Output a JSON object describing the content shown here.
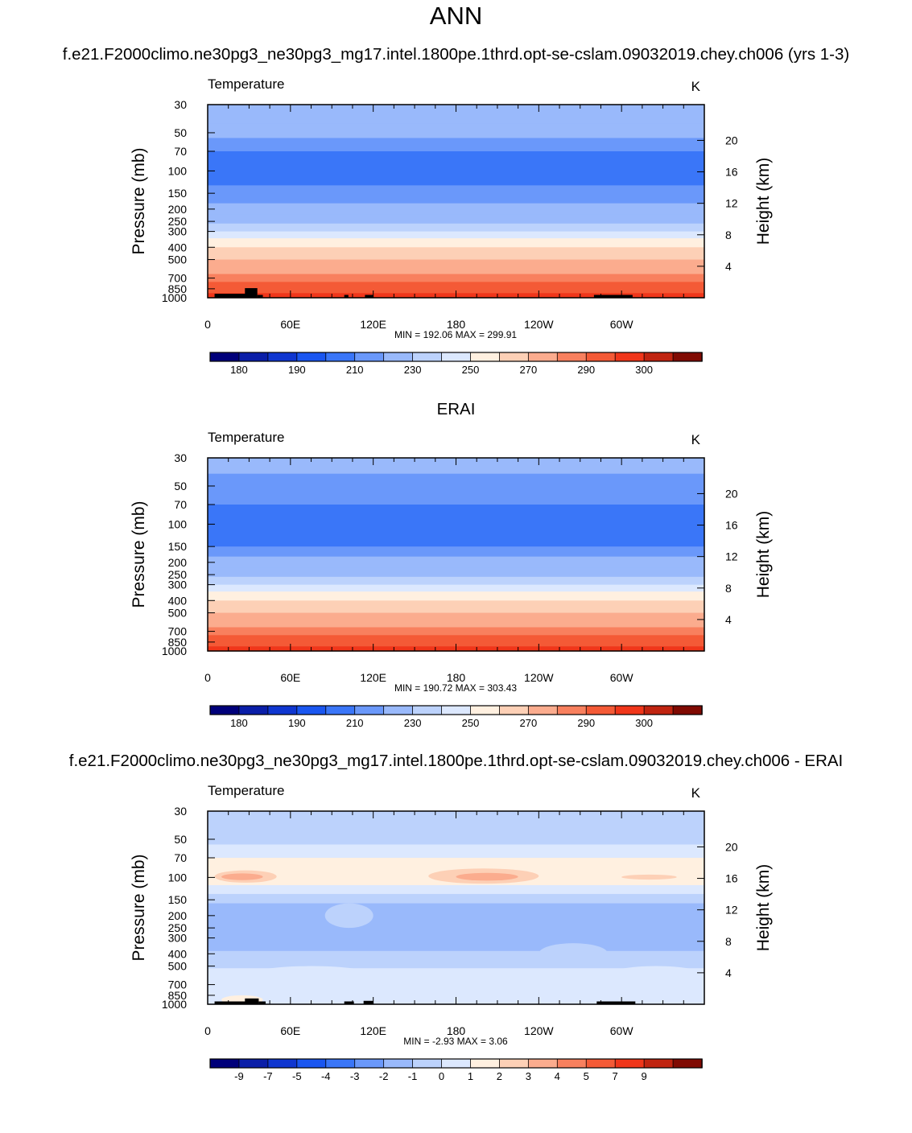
{
  "page": {
    "title": "ANN"
  },
  "colors": {
    "temperature_scale": [
      "#00007a",
      "#0a1ea8",
      "#0f36d0",
      "#1a56f0",
      "#3a76f8",
      "#6a98fa",
      "#99b9fb",
      "#bcd2fc",
      "#dce8fe",
      "#fff0e0",
      "#fdd0b6",
      "#fbac8e",
      "#f8805e",
      "#f45a36",
      "#f0361a",
      "#c02410",
      "#800a02"
    ],
    "difference_scale": [
      "#00007a",
      "#0a1ea8",
      "#0f36d0",
      "#1a56f0",
      "#3a76f8",
      "#6a98fa",
      "#99b9fb",
      "#bcd2fc",
      "#dce8fe",
      "#fff0e0",
      "#fdd0b6",
      "#fbac8e",
      "#f8805e",
      "#f45a36",
      "#f0361a",
      "#c02410",
      "#800a02"
    ],
    "topography": "#000000"
  },
  "chart_data": [
    {
      "type": "heatmap",
      "panel_title": "f.e21.F2000climo.ne30pg3_ne30pg3_mg17.intel.1800pe.1thrd.opt-se-cslam.09032019.chey.ch006 (yrs 1-3)",
      "variable": "Temperature",
      "units": "K",
      "ylabel": "Pressure (mb)",
      "ylabel_right": "Height (km)",
      "x_tick_labels": [
        "0",
        "60E",
        "120E",
        "180",
        "120W",
        "60W"
      ],
      "x_tick_degrees": [
        0,
        60,
        120,
        180,
        240,
        300
      ],
      "xlim": [
        0,
        360
      ],
      "y_scale": "log",
      "y_tick_labels": [
        "30",
        "50",
        "70",
        "100",
        "150",
        "200",
        "250",
        "300",
        "400",
        "500",
        "700",
        "850",
        "1000"
      ],
      "ylim": [
        30,
        1000
      ],
      "height_tick_labels": [
        "20",
        "16",
        "12",
        "8",
        "4"
      ],
      "stats": "MIN = 192.06  MAX = 299.91",
      "colorbar_labels": [
        "180",
        "190",
        "210",
        "230",
        "250",
        "270",
        "290",
        "300"
      ],
      "colorbar_levels": [
        175,
        180,
        185,
        190,
        200,
        210,
        220,
        230,
        240,
        250,
        260,
        270,
        280,
        290,
        295,
        300
      ],
      "profile": [
        {
          "p": 30,
          "v": 216
        },
        {
          "p": 42,
          "v": 211
        },
        {
          "p": 55,
          "v": 204
        },
        {
          "p": 70,
          "v": 199
        },
        {
          "p": 100,
          "v": 196
        },
        {
          "p": 130,
          "v": 201
        },
        {
          "p": 150,
          "v": 205
        },
        {
          "p": 180,
          "v": 211
        },
        {
          "p": 220,
          "v": 218
        },
        {
          "p": 260,
          "v": 227
        },
        {
          "p": 300,
          "v": 235
        },
        {
          "p": 340,
          "v": 243
        },
        {
          "p": 400,
          "v": 251
        },
        {
          "p": 450,
          "v": 257
        },
        {
          "p": 500,
          "v": 262
        },
        {
          "p": 580,
          "v": 268
        },
        {
          "p": 650,
          "v": 273
        },
        {
          "p": 750,
          "v": 280
        },
        {
          "p": 850,
          "v": 286
        },
        {
          "p": 920,
          "v": 290
        },
        {
          "p": 1000,
          "v": 293
        }
      ],
      "topography_blocks": [
        [
          5,
          28,
          930
        ],
        [
          27,
          36,
          840
        ],
        [
          36,
          40,
          950
        ],
        [
          99,
          102,
          950
        ],
        [
          114,
          120,
          950
        ],
        [
          280,
          308,
          950
        ]
      ]
    },
    {
      "type": "heatmap",
      "panel_title": "ERAI",
      "variable": "Temperature",
      "units": "K",
      "ylabel": "Pressure (mb)",
      "ylabel_right": "Height (km)",
      "x_tick_labels": [
        "0",
        "60E",
        "120E",
        "180",
        "120W",
        "60W"
      ],
      "x_tick_degrees": [
        0,
        60,
        120,
        180,
        240,
        300
      ],
      "xlim": [
        0,
        360
      ],
      "y_scale": "log",
      "y_tick_labels": [
        "30",
        "50",
        "70",
        "100",
        "150",
        "200",
        "250",
        "300",
        "400",
        "500",
        "700",
        "850",
        "1000"
      ],
      "ylim": [
        30,
        1000
      ],
      "height_tick_labels": [
        "20",
        "16",
        "12",
        "8",
        "4"
      ],
      "stats": "MIN = 190.72  MAX = 303.43",
      "colorbar_labels": [
        "180",
        "190",
        "210",
        "230",
        "250",
        "270",
        "290",
        "300"
      ],
      "colorbar_levels": [
        175,
        180,
        185,
        190,
        200,
        210,
        220,
        230,
        240,
        250,
        260,
        270,
        280,
        290,
        295,
        300
      ],
      "profile": [
        {
          "p": 30,
          "v": 213
        },
        {
          "p": 40,
          "v": 209
        },
        {
          "p": 50,
          "v": 204
        },
        {
          "p": 70,
          "v": 197
        },
        {
          "p": 100,
          "v": 195
        },
        {
          "p": 125,
          "v": 199
        },
        {
          "p": 150,
          "v": 205
        },
        {
          "p": 180,
          "v": 211
        },
        {
          "p": 220,
          "v": 218
        },
        {
          "p": 260,
          "v": 227
        },
        {
          "p": 300,
          "v": 235
        },
        {
          "p": 340,
          "v": 243
        },
        {
          "p": 400,
          "v": 251
        },
        {
          "p": 450,
          "v": 257
        },
        {
          "p": 500,
          "v": 262
        },
        {
          "p": 580,
          "v": 268
        },
        {
          "p": 650,
          "v": 273
        },
        {
          "p": 750,
          "v": 280
        },
        {
          "p": 850,
          "v": 286
        },
        {
          "p": 920,
          "v": 291
        },
        {
          "p": 1000,
          "v": 296
        }
      ],
      "topography_blocks": []
    },
    {
      "type": "heatmap",
      "panel_title": "f.e21.F2000climo.ne30pg3_ne30pg3_mg17.intel.1800pe.1thrd.opt-se-cslam.09032019.chey.ch006 - ERAI",
      "variable": "Temperature",
      "units": "K",
      "ylabel": "Pressure (mb)",
      "ylabel_right": "Height (km)",
      "x_tick_labels": [
        "0",
        "60E",
        "120E",
        "180",
        "120W",
        "60W"
      ],
      "x_tick_degrees": [
        0,
        60,
        120,
        180,
        240,
        300
      ],
      "xlim": [
        0,
        360
      ],
      "y_scale": "log",
      "y_tick_labels": [
        "30",
        "50",
        "70",
        "100",
        "150",
        "200",
        "250",
        "300",
        "400",
        "500",
        "700",
        "850",
        "1000"
      ],
      "ylim": [
        30,
        1000
      ],
      "height_tick_labels": [
        "20",
        "16",
        "12",
        "8",
        "4"
      ],
      "stats": "MIN =  -2.93  MAX =   3.06",
      "colorbar_labels": [
        "-9",
        "-7",
        "-5",
        "-4",
        "-3",
        "-2",
        "-1",
        "0",
        "1",
        "2",
        "3",
        "4",
        "5",
        "7",
        "9"
      ],
      "colorbar_levels": [
        -11,
        -9,
        -7,
        -5,
        -4,
        -3,
        -2,
        -1,
        0,
        1,
        2,
        3,
        4,
        5,
        7,
        9
      ],
      "bands": [
        {
          "p0": 30,
          "p1": 55,
          "v": -1.5
        },
        {
          "p0": 55,
          "p1": 70,
          "v": -0.5
        },
        {
          "p0": 70,
          "p1": 85,
          "v": 0.5
        },
        {
          "p0": 85,
          "p1": 115,
          "v": 0.5
        },
        {
          "p0": 115,
          "p1": 135,
          "v": -0.5
        },
        {
          "p0": 135,
          "p1": 160,
          "v": -1.5
        },
        {
          "p0": 160,
          "p1": 380,
          "v": -2.5
        },
        {
          "p0": 380,
          "p1": 520,
          "v": -1.5
        },
        {
          "p0": 520,
          "p1": 720,
          "v": -0.5
        },
        {
          "p0": 720,
          "p1": 1000,
          "v": -0.5
        }
      ],
      "blobs": [
        {
          "lon0": 5,
          "lon1": 50,
          "p0": 88,
          "p1": 110,
          "v": 1.5
        },
        {
          "lon0": 10,
          "lon1": 40,
          "p0": 93,
          "p1": 105,
          "v": 2.5
        },
        {
          "lon0": 160,
          "lon1": 240,
          "p0": 85,
          "p1": 112,
          "v": 1.5
        },
        {
          "lon0": 180,
          "lon1": 225,
          "p0": 92,
          "p1": 106,
          "v": 2.5
        },
        {
          "lon0": 300,
          "lon1": 340,
          "p0": 95,
          "p1": 104,
          "v": 1.5
        },
        {
          "lon0": 85,
          "lon1": 120,
          "p0": 160,
          "p1": 250,
          "v": -1.5
        },
        {
          "lon0": 240,
          "lon1": 290,
          "p0": 330,
          "p1": 480,
          "v": -1.5
        },
        {
          "lon0": 30,
          "lon1": 120,
          "p0": 500,
          "p1": 700,
          "v": -0.5
        },
        {
          "lon0": 290,
          "lon1": 360,
          "p0": 500,
          "p1": 700,
          "v": -0.5
        },
        {
          "lon0": 10,
          "lon1": 40,
          "p0": 850,
          "p1": 1000,
          "v": 0.5
        }
      ],
      "topography_blocks": [
        [
          5,
          28,
          950
        ],
        [
          27,
          37,
          900
        ],
        [
          37,
          42,
          950
        ],
        [
          99,
          106,
          950
        ],
        [
          113,
          120,
          940
        ],
        [
          282,
          310,
          950
        ]
      ]
    }
  ]
}
